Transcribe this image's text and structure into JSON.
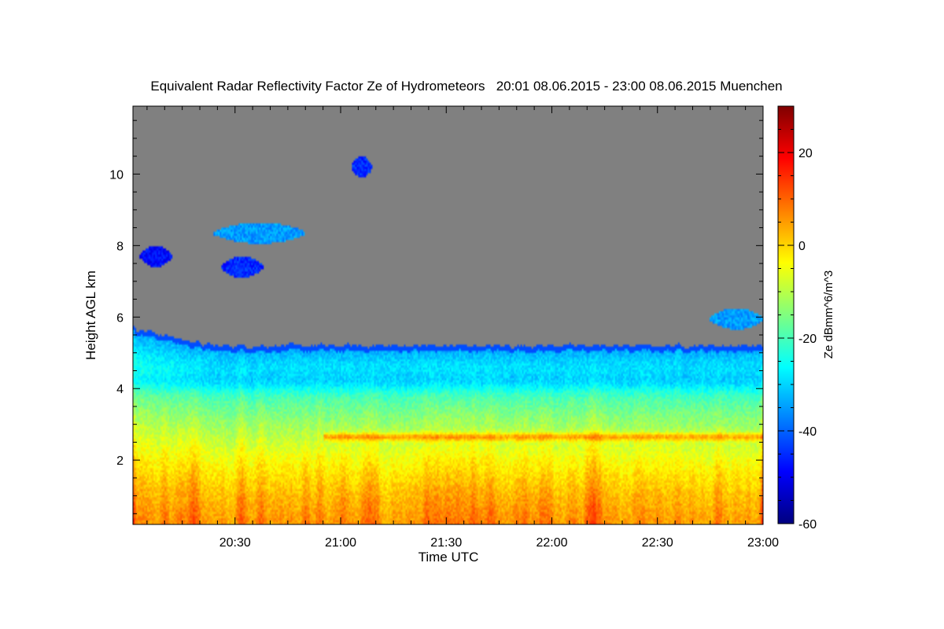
{
  "chart_data": {
    "type": "heatmap",
    "title": "Equivalent Radar Reflectivity Factor Ze of Hydrometeors   20:01 08.06.2015 - 23:00 08.06.2015 Muenchen",
    "xlabel": "Time UTC",
    "ylabel": "Height AGL km",
    "xlim": [
      "20:01",
      "23:00"
    ],
    "ylim_km": [
      0.2,
      11.9
    ],
    "x_ticks": [
      "20:30",
      "21:00",
      "21:30",
      "22:00",
      "22:30",
      "23:00"
    ],
    "y_ticks": [
      2,
      4,
      6,
      8,
      10
    ],
    "colorbar": {
      "label": "Ze dBmm^6/m^3",
      "range": [
        -60,
        30
      ],
      "ticks": [
        20,
        0,
        -20,
        -40,
        -60
      ],
      "colormap": "jet",
      "no_signal_color": "#808080"
    },
    "features": {
      "echo_top_km": 5.2,
      "bright_band_km": 2.65,
      "bright_band_from": "20:55",
      "weak_layer_km": 4.2,
      "high_cloud_patches": [
        {
          "t_start": "20:24",
          "t_end": "20:50",
          "height_km": 8.35,
          "ze_dbz": -35
        },
        {
          "t_start": "20:26",
          "t_end": "20:38",
          "height_km": 7.4,
          "ze_dbz": -45
        },
        {
          "t_start": "20:03",
          "t_end": "20:12",
          "height_km": 7.7,
          "ze_dbz": -48
        },
        {
          "t_start": "21:03",
          "t_end": "21:09",
          "height_km": 10.2,
          "ze_dbz": -45
        },
        {
          "t_start": "22:45",
          "t_end": "23:00",
          "height_km": 5.95,
          "ze_dbz": -35
        }
      ]
    }
  }
}
